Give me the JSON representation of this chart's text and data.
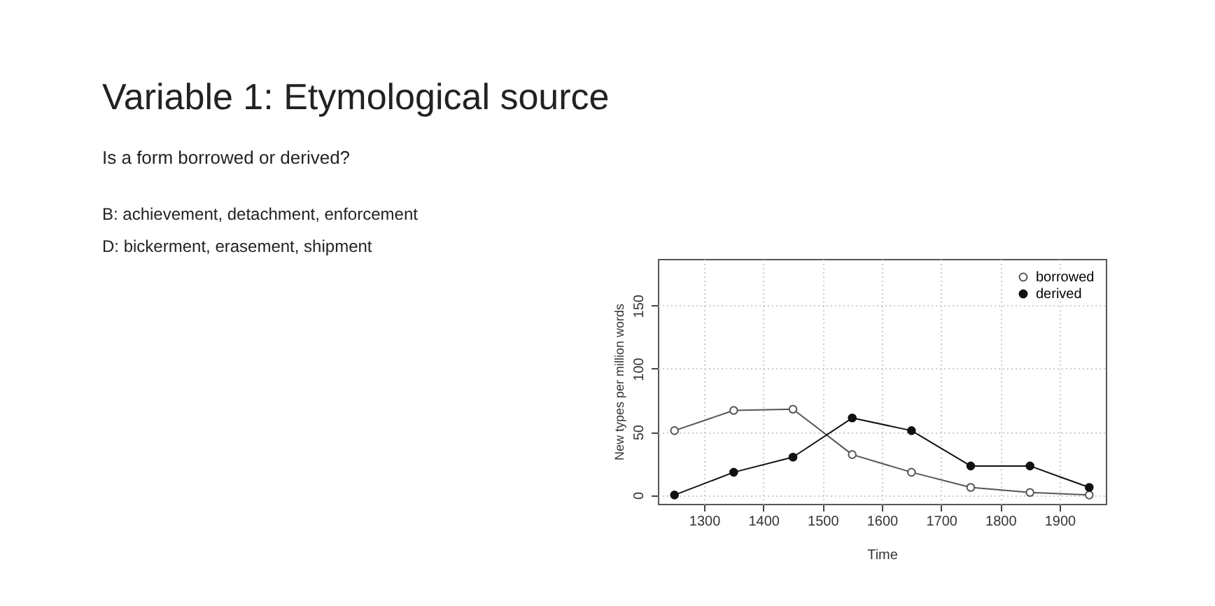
{
  "chart_data": {
    "type": "line",
    "title": "Variable 1: Etymological source",
    "subtitle": "Is a form borrowed or derived?",
    "annotations": [
      "B:      achievement, detachment, enforcement",
      "D:      bickerment, erasement, shipment"
    ],
    "xlabel": "Time",
    "ylabel": "New types per million words",
    "x": [
      1250,
      1350,
      1450,
      1550,
      1650,
      1750,
      1850,
      1950
    ],
    "series": [
      {
        "name": "borrowed",
        "color": "#555555",
        "values": [
          51,
          67,
          68,
          32,
          18,
          6,
          2,
          0
        ]
      },
      {
        "name": "derived",
        "color": "#111111",
        "values": [
          0,
          18,
          30,
          61,
          51,
          23,
          23,
          6
        ]
      }
    ],
    "xlim": [
      1222,
      1978
    ],
    "xticks": [
      1300,
      1400,
      1500,
      1600,
      1700,
      1800,
      1900
    ],
    "ylim": [
      -7,
      187
    ],
    "yticks": [
      0,
      50,
      100,
      150
    ],
    "grid": true,
    "legend": "top right",
    "marker": "circle",
    "line_style": "solid"
  }
}
